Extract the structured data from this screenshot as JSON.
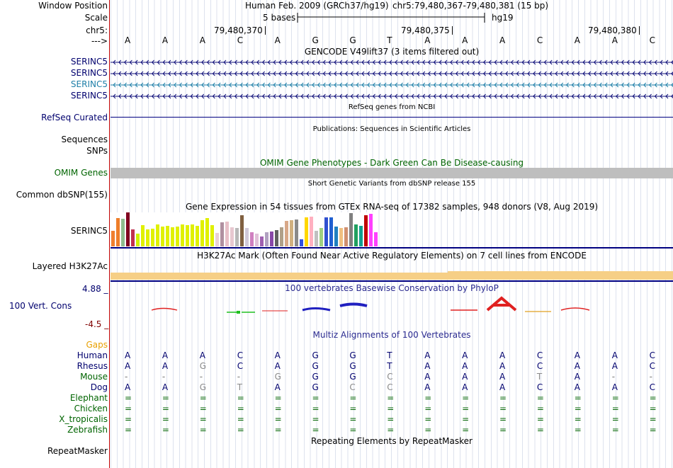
{
  "header": {
    "labels": {
      "window_position": "Window Position",
      "scale": "Scale",
      "chr": "chr5:",
      "arrow": "--->"
    },
    "assembly": "Human Feb. 2009 (GRCh37/hg19)",
    "position": "chr5:79,480,367-79,480,381 (15 bp)",
    "scale_text": "5 bases",
    "scale_db": "hg19",
    "coords": [
      "79,480,370",
      "79,480,375",
      "79,480,380"
    ],
    "bases": [
      "A",
      "A",
      "A",
      "C",
      "A",
      "G",
      "G",
      "T",
      "A",
      "A",
      "A",
      "C",
      "A",
      "A",
      "C"
    ]
  },
  "gencode": {
    "title": "GENCODE V49lift37 (3 items filtered out)",
    "items": [
      "SERINC5",
      "SERINC5",
      "SERINC5",
      "SERINC5"
    ],
    "colors": [
      "#0c0c78",
      "#0c0c78",
      "#1e7fa8",
      "#0c0c78"
    ]
  },
  "refseq": {
    "title": "RefSeq genes from NCBI",
    "label": "RefSeq Curated"
  },
  "publications": {
    "title": "Publications: Sequences in Scientific Articles",
    "label1": "Sequences",
    "label2": "SNPs"
  },
  "omim": {
    "title": "OMIM Gene Phenotypes - Dark Green Can Be Disease-causing",
    "label": "OMIM Genes"
  },
  "dbsnp": {
    "title": "Short Genetic Variants from dbSNP release 155",
    "label": "Common dbSNP(155)"
  },
  "gtex": {
    "title": "Gene Expression in 54 tissues from GTEx RNA-seq of 17382 samples, 948 donors (V8, Aug 2019)",
    "label": "SERINC5",
    "values": [
      22,
      40,
      39,
      48,
      24,
      18,
      30,
      24,
      25,
      31,
      28,
      29,
      27,
      28,
      31,
      30,
      31,
      29,
      37,
      40,
      30,
      19,
      34,
      35,
      27,
      26,
      44,
      26,
      20,
      18,
      14,
      20,
      21,
      23,
      27,
      36,
      37,
      38,
      10,
      41,
      42,
      22,
      26,
      41,
      41,
      28,
      26,
      27,
      47,
      31,
      29,
      44,
      46,
      20
    ],
    "colors": [
      "#f08030",
      "#ee7e2a",
      "#8fbc8f",
      "#800020",
      "#c03050",
      "#d0f000",
      "#e0f000",
      "#e0f000",
      "#e0f000",
      "#e0f000",
      "#e0f000",
      "#e0f000",
      "#e0f000",
      "#e0f000",
      "#e0f000",
      "#e0f000",
      "#e0f000",
      "#e0f000",
      "#e0f000",
      "#e0f000",
      "#e0f000",
      "#e8d0d8",
      "#b090a0",
      "#e8c0c8",
      "#e8c8d0",
      "#b8b8b8",
      "#806040",
      "#d0c8d8",
      "#d080c0",
      "#e0c0d8",
      "#a060b0",
      "#b0a0c0",
      "#8848a8",
      "#606060",
      "#b0a088",
      "#d8a888",
      "#d0b080",
      "#8a8a8a",
      "#3050e0",
      "#ffd700",
      "#ffb0c0",
      "#c0c0c0",
      "#a0d080",
      "#3050d0",
      "#2060d0",
      "#2080c0",
      "#f0c080",
      "#d09070",
      "#808080",
      "#20a060",
      "#10a090",
      "#c00000",
      "#ff40ff",
      "#ff40ff"
    ]
  },
  "h3k27ac": {
    "title": "H3K27Ac Mark (Often Found Near Active Regulatory Elements) on 7 cell lines from ENCODE",
    "label": "Layered H3K27Ac"
  },
  "phylop": {
    "title": "100 vertebrates Basewise Conservation by PhyloP",
    "label": "100 Vert. Cons",
    "max": "4.88 _",
    "min": "-4.5 _"
  },
  "multiz": {
    "title": "Multiz Alignments of 100 Vertebrates",
    "gaps_label": "Gaps",
    "species": [
      {
        "name": "Human",
        "color": "#00006e",
        "bases": [
          "A",
          "A",
          "A",
          "C",
          "A",
          "G",
          "G",
          "T",
          "A",
          "A",
          "A",
          "C",
          "A",
          "A",
          "C"
        ]
      },
      {
        "name": "Rhesus",
        "color": "#00006e",
        "bases": [
          "A",
          "A",
          "G",
          "C",
          "A",
          "G",
          "G",
          "T",
          "A",
          "A",
          "A",
          "C",
          "A",
          "A",
          "C"
        ]
      },
      {
        "name": "Mouse",
        "color": "#006400",
        "bases": [
          "-",
          "-",
          "-",
          "-",
          "G",
          "G",
          "G",
          "C",
          "A",
          "A",
          "A",
          "T",
          "A",
          "-",
          "-"
        ]
      },
      {
        "name": "Dog",
        "color": "#00006e",
        "bases": [
          "A",
          "A",
          "G",
          "T",
          "A",
          "G",
          "C",
          "C",
          "A",
          "A",
          "A",
          "C",
          "A",
          "A",
          "C"
        ]
      },
      {
        "name": "Elephant",
        "color": "#006400",
        "bases": [
          "=",
          "=",
          "=",
          "=",
          "=",
          "=",
          "=",
          "=",
          "=",
          "=",
          "=",
          "=",
          "=",
          "=",
          "="
        ]
      },
      {
        "name": "Chicken",
        "color": "#006400",
        "bases": [
          "=",
          "=",
          "=",
          "=",
          "=",
          "=",
          "=",
          "=",
          "=",
          "=",
          "=",
          "=",
          "=",
          "=",
          "="
        ]
      },
      {
        "name": "X_tropicalis",
        "color": "#006400",
        "bases": [
          "=",
          "=",
          "=",
          "=",
          "=",
          "=",
          "=",
          "=",
          "=",
          "=",
          "=",
          "=",
          "=",
          "=",
          "="
        ]
      },
      {
        "name": "Zebrafish",
        "color": "#006400",
        "bases": [
          "=",
          "=",
          "=",
          "=",
          "=",
          "=",
          "=",
          "=",
          "=",
          "=",
          "=",
          "=",
          "=",
          "=",
          "="
        ]
      }
    ]
  },
  "repeatmasker": {
    "title": "Repeating Elements by RepeatMasker",
    "label": "RepeatMasker"
  }
}
